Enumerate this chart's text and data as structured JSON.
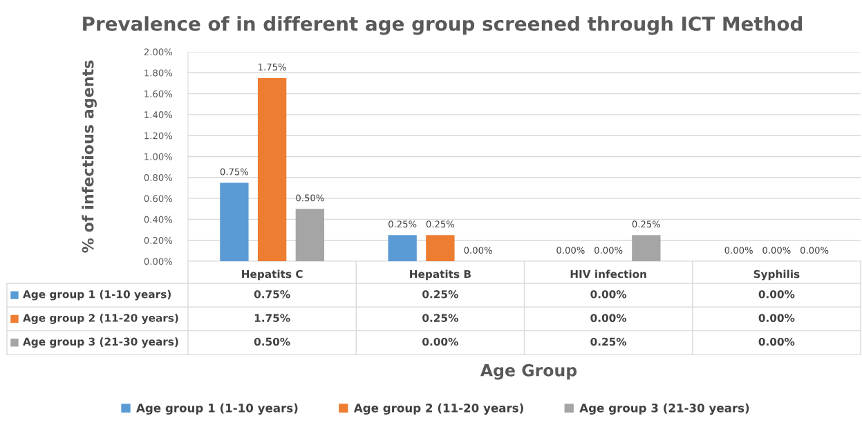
{
  "chart_data": {
    "type": "bar",
    "title": "Prevalence of in different age group screened through ICT Method",
    "annotations": [
      "Age Group"
    ],
    "ylabel": "% of infectious agents",
    "categories": [
      "Hepatits C",
      "Hepatits B",
      "HIV infection",
      "Syphilis"
    ],
    "series": [
      {
        "name": "Age group 1 (1-10 years)",
        "color": "#5b9bd5",
        "values": [
          0.75,
          0.25,
          0,
          0
        ],
        "value_labels": [
          "0.75%",
          "0.25%",
          "0.00%",
          "0.00%"
        ]
      },
      {
        "name": "Age group 2 (11-20 years)",
        "color": "#ed7d31",
        "values": [
          1.75,
          0.25,
          0,
          0
        ],
        "value_labels": [
          "1.75%",
          "0.25%",
          "0.00%",
          "0.00%"
        ]
      },
      {
        "name": "Age group 3 (21-30 years)",
        "color": "#a5a5a5",
        "values": [
          0.5,
          0,
          0.25,
          0
        ],
        "value_labels": [
          "0.50%",
          "0.00%",
          "0.25%",
          "0.00%"
        ]
      }
    ],
    "ylim": [
      0,
      2
    ],
    "yticks": [
      {
        "value": 0,
        "label": "0.00%"
      },
      {
        "value": 0.2,
        "label": "0.20%"
      },
      {
        "value": 0.4,
        "label": "0.40%"
      },
      {
        "value": 0.6,
        "label": "0.60%"
      },
      {
        "value": 0.8,
        "label": "0.80%"
      },
      {
        "value": 1,
        "label": "1.00%"
      },
      {
        "value": 1.2,
        "label": "1.20%"
      },
      {
        "value": 1.4,
        "label": "1.40%"
      },
      {
        "value": 1.6,
        "label": "1.60%"
      },
      {
        "value": 1.8,
        "label": "1.80%"
      },
      {
        "value": 2,
        "label": "2.00%"
      }
    ],
    "grid": "y",
    "legend": "bottom"
  }
}
